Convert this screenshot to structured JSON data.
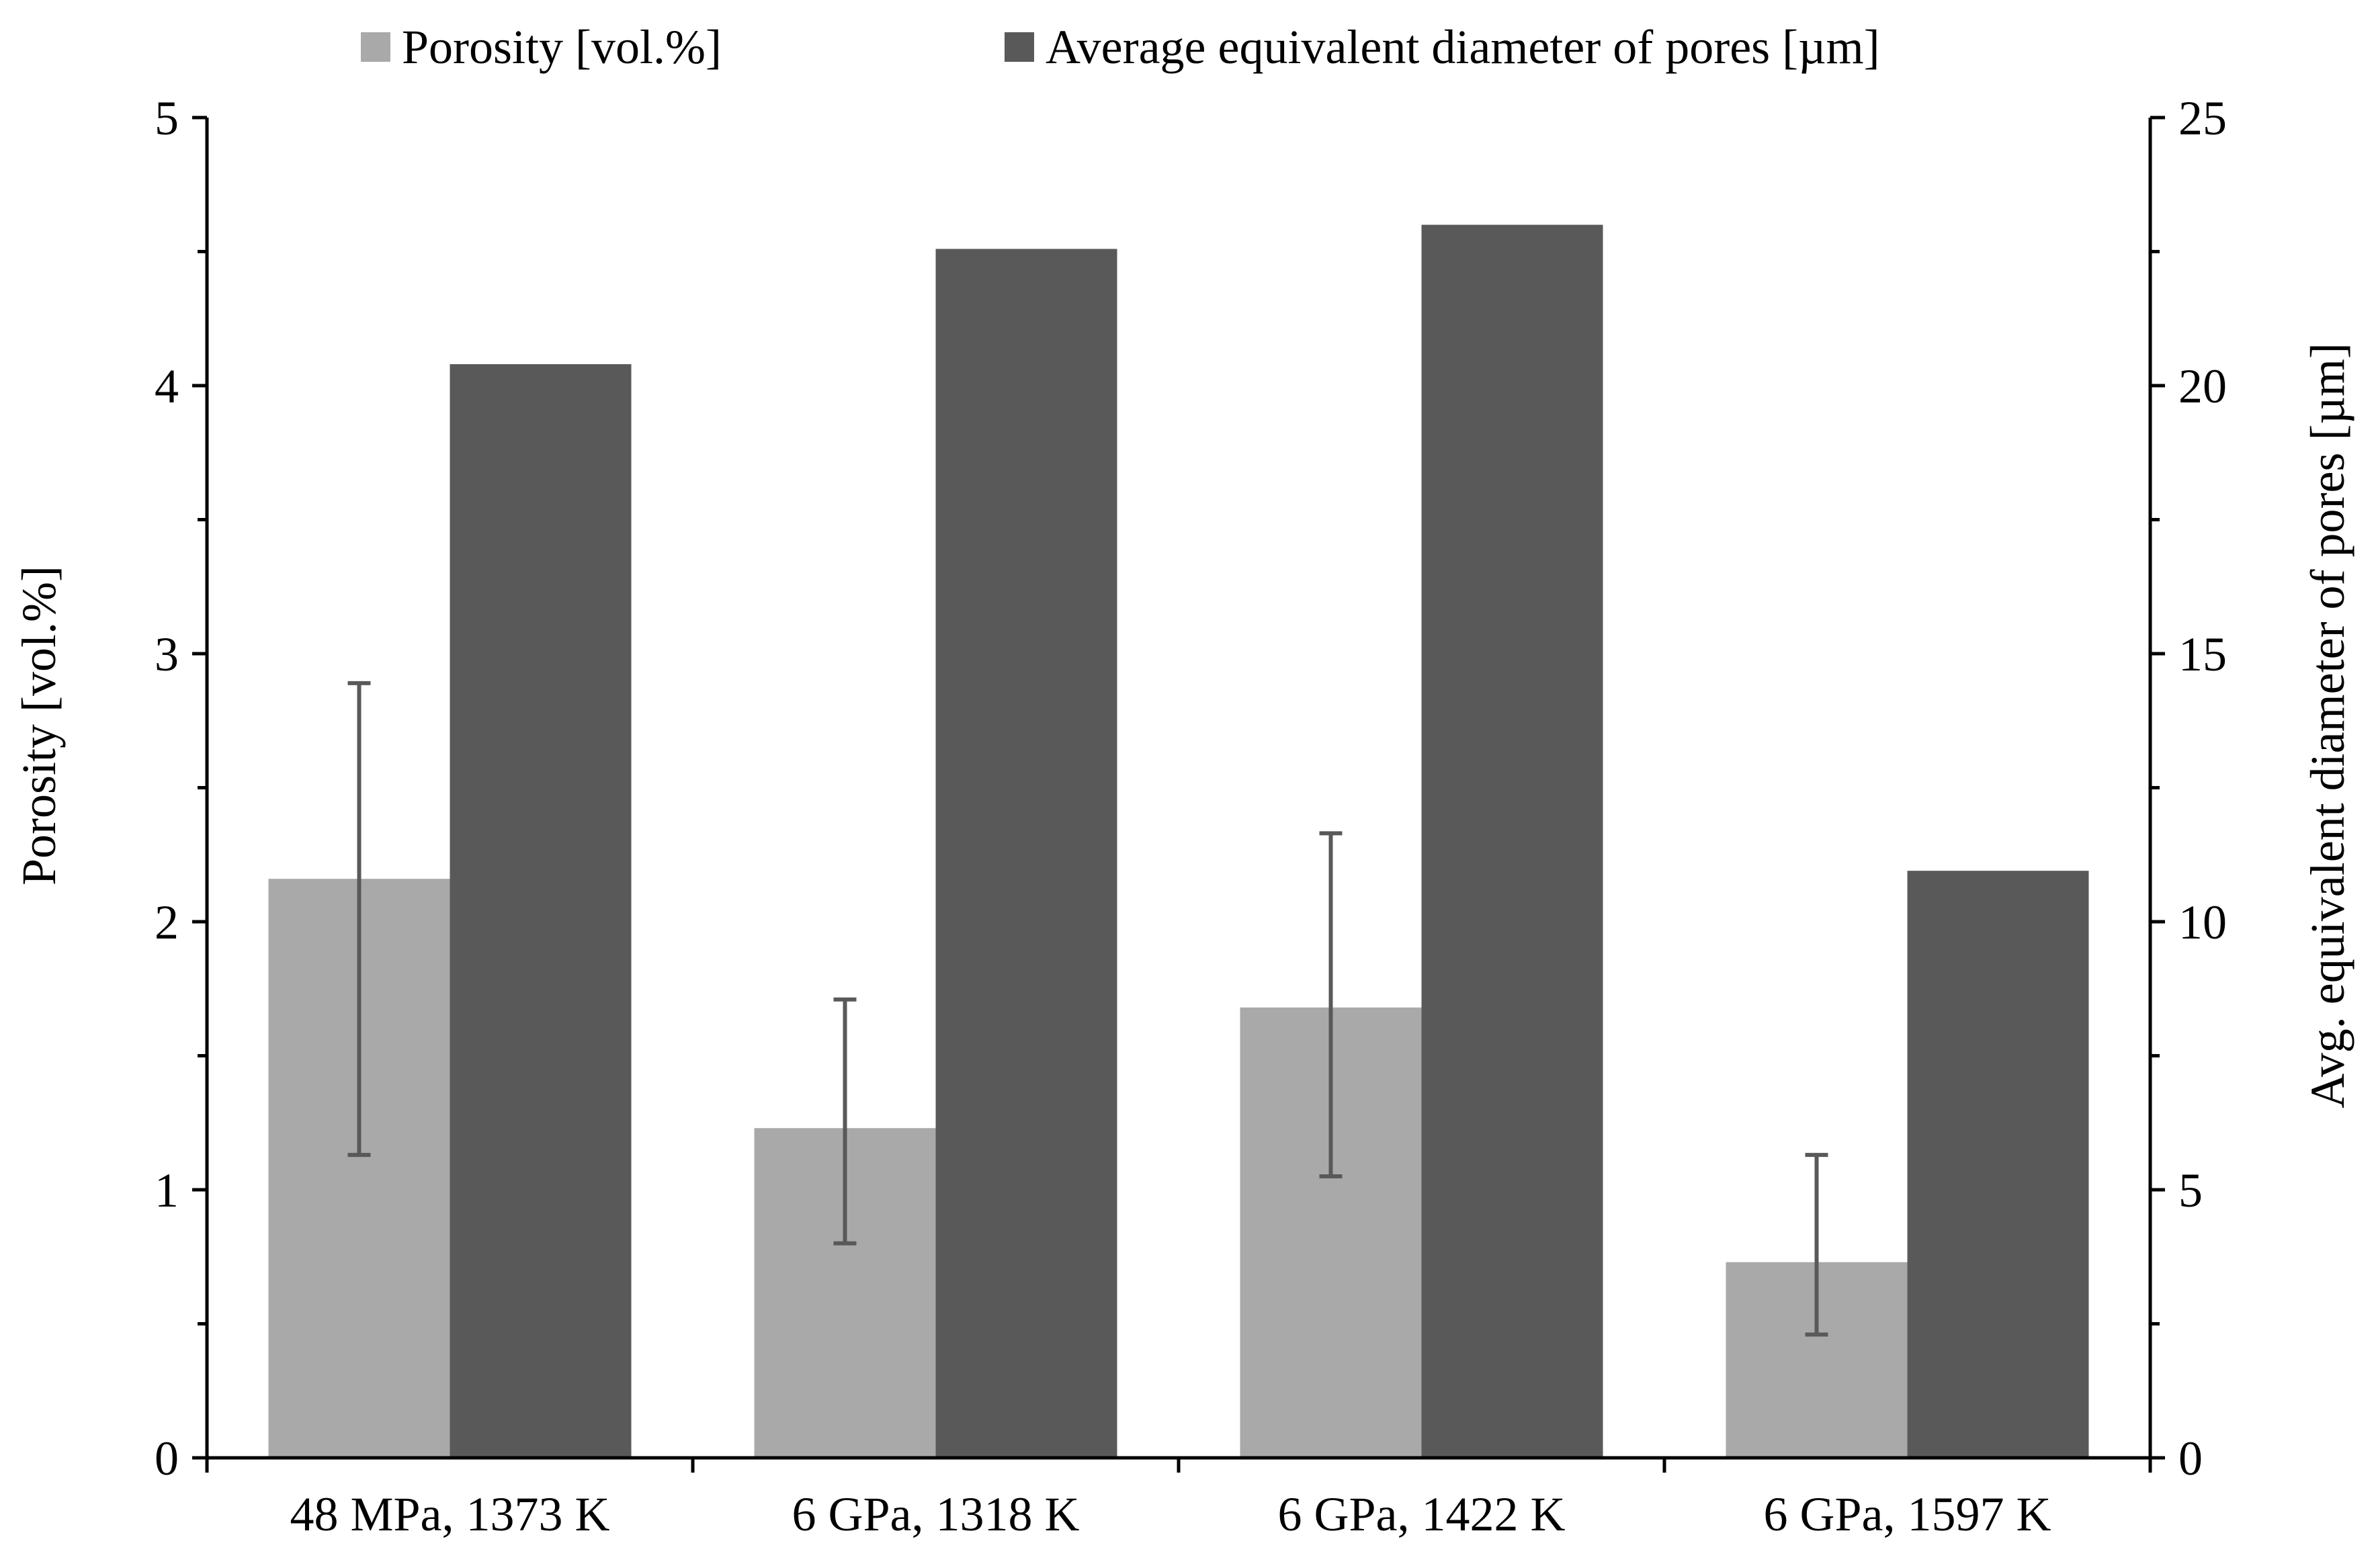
{
  "chart_data": {
    "type": "bar",
    "categories": [
      "48 MPa, 1373 K",
      "6 GPa, 1318 K",
      "6 GPa, 1422 K",
      "6 GPa, 1597 K"
    ],
    "series": [
      {
        "name": "Porosity [vol.%]",
        "axis": "left",
        "color": "#a9a9a9",
        "values": [
          2.16,
          1.23,
          1.68,
          0.73
        ],
        "error_low": [
          1.13,
          0.8,
          1.05,
          0.46
        ],
        "error_high": [
          2.89,
          1.71,
          2.33,
          1.13
        ]
      },
      {
        "name": "Average equivalent diameter of pores [µm]",
        "axis": "right",
        "color": "#595959",
        "values": [
          20.4,
          22.55,
          23.0,
          10.95
        ]
      }
    ],
    "ylabel": "Porosity [vol.%]",
    "y2label": "Avg. equivalent diameter of pores [µm]",
    "ylim": [
      0,
      5
    ],
    "y2lim": [
      0,
      25
    ],
    "yticks": [
      "0",
      "1",
      "2",
      "3",
      "4",
      "5"
    ],
    "y2ticks": [
      "0",
      "5",
      "10",
      "15",
      "20",
      "25"
    ],
    "error_bar_color": "#595959",
    "grid": false,
    "legend_position": "top"
  }
}
